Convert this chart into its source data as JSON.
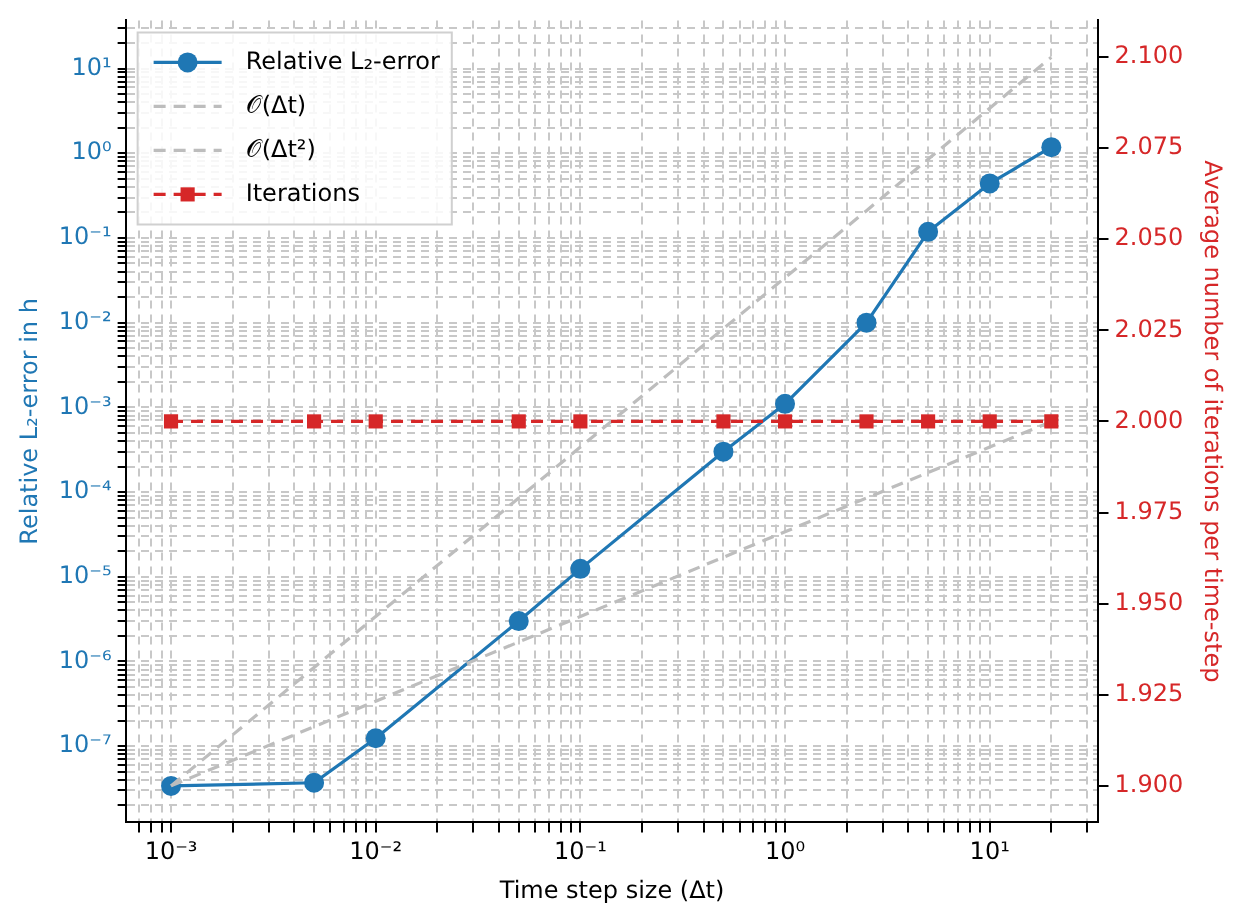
{
  "chart_data": {
    "type": "line",
    "xlabel": "Time step size (Δt)",
    "ylabel": "Relative L₂-error in h",
    "y2label": "Average number of iterations per time-step",
    "x": [
      0.001,
      0.005,
      0.01,
      0.05,
      0.1,
      0.5,
      1,
      2.5,
      5,
      10,
      20
    ],
    "series": [
      {
        "name": "Relative L₂-error",
        "color": "#1f77b4",
        "values": [
          3.4e-08,
          3.7e-08,
          1.24e-07,
          3e-06,
          1.24e-05,
          0.0003,
          0.0011,
          0.01,
          0.118,
          0.44,
          1.18
        ],
        "marker": "circle",
        "line_style": "solid"
      },
      {
        "name": "𝒪(Δt)",
        "color": "#bdbdbd",
        "values": [
          3.4e-08,
          1.7e-07,
          3.4e-07,
          1.7e-06,
          3.4e-06,
          1.7e-05,
          3.4e-05,
          8.5e-05,
          0.00017,
          0.00034,
          0.00068
        ],
        "marker": "none",
        "line_style": "dashed"
      },
      {
        "name": "𝒪(Δt²)",
        "color": "#bdbdbd",
        "values": [
          3.4e-08,
          8.5e-07,
          3.4e-06,
          8.5e-05,
          0.00034,
          0.0085,
          0.034,
          0.21,
          0.85,
          3.4,
          13.6
        ],
        "marker": "none",
        "line_style": "dashed"
      },
      {
        "name": "Iterations",
        "color": "#d62728",
        "axis": "y2",
        "values": [
          2,
          2,
          2,
          2,
          2,
          2,
          2,
          2,
          2,
          2,
          2
        ],
        "marker": "square",
        "line_style": "dashed"
      }
    ],
    "log": "xy",
    "grid": true,
    "legend": "top left",
    "xlim": [
      0.0006,
      34
    ],
    "xticks": [
      {
        "value": 0.0007,
        "label": null
      },
      {
        "value": 0.0008,
        "label": null
      },
      {
        "value": 0.0009,
        "label": null
      },
      {
        "value": 0.001,
        "label": "10⁻³"
      },
      {
        "value": 0.002,
        "label": null
      },
      {
        "value": 0.003,
        "label": null
      },
      {
        "value": 0.004,
        "label": null
      },
      {
        "value": 0.005,
        "label": null
      },
      {
        "value": 0.006,
        "label": null
      },
      {
        "value": 0.007,
        "label": null
      },
      {
        "value": 0.008,
        "label": null
      },
      {
        "value": 0.009,
        "label": null
      },
      {
        "value": 0.01,
        "label": "10⁻²"
      },
      {
        "value": 0.02,
        "label": null
      },
      {
        "value": 0.03,
        "label": null
      },
      {
        "value": 0.04,
        "label": null
      },
      {
        "value": 0.05,
        "label": null
      },
      {
        "value": 0.06,
        "label": null
      },
      {
        "value": 0.07,
        "label": null
      },
      {
        "value": 0.08,
        "label": null
      },
      {
        "value": 0.09,
        "label": null
      },
      {
        "value": 0.1,
        "label": "10⁻¹"
      },
      {
        "value": 0.2,
        "label": null
      },
      {
        "value": 0.3,
        "label": null
      },
      {
        "value": 0.4,
        "label": null
      },
      {
        "value": 0.5,
        "label": null
      },
      {
        "value": 0.6,
        "label": null
      },
      {
        "value": 0.7,
        "label": null
      },
      {
        "value": 0.8,
        "label": null
      },
      {
        "value": 0.9,
        "label": null
      },
      {
        "value": 1,
        "label": "10⁰"
      },
      {
        "value": 2,
        "label": null
      },
      {
        "value": 3,
        "label": null
      },
      {
        "value": 4,
        "label": null
      },
      {
        "value": 5,
        "label": null
      },
      {
        "value": 6,
        "label": null
      },
      {
        "value": 7,
        "label": null
      },
      {
        "value": 8,
        "label": null
      },
      {
        "value": 9,
        "label": null
      },
      {
        "value": 10,
        "label": "10¹"
      },
      {
        "value": 20,
        "label": null
      },
      {
        "value": 30,
        "label": null
      }
    ],
    "ylim": [
      1.26e-08,
      37
    ],
    "yticks": [
      {
        "value": 2e-08,
        "label": null
      },
      {
        "value": 3e-08,
        "label": null
      },
      {
        "value": 4e-08,
        "label": null
      },
      {
        "value": 5e-08,
        "label": null
      },
      {
        "value": 6e-08,
        "label": null
      },
      {
        "value": 7e-08,
        "label": null
      },
      {
        "value": 8e-08,
        "label": null
      },
      {
        "value": 9e-08,
        "label": null
      },
      {
        "value": 1e-07,
        "label": "10⁻⁷"
      },
      {
        "value": 2e-07,
        "label": null
      },
      {
        "value": 3e-07,
        "label": null
      },
      {
        "value": 4e-07,
        "label": null
      },
      {
        "value": 5e-07,
        "label": null
      },
      {
        "value": 6e-07,
        "label": null
      },
      {
        "value": 7e-07,
        "label": null
      },
      {
        "value": 8e-07,
        "label": null
      },
      {
        "value": 9e-07,
        "label": null
      },
      {
        "value": 1e-06,
        "label": "10⁻⁶"
      },
      {
        "value": 2e-06,
        "label": null
      },
      {
        "value": 3e-06,
        "label": null
      },
      {
        "value": 4e-06,
        "label": null
      },
      {
        "value": 5e-06,
        "label": null
      },
      {
        "value": 6e-06,
        "label": null
      },
      {
        "value": 7e-06,
        "label": null
      },
      {
        "value": 8e-06,
        "label": null
      },
      {
        "value": 9e-06,
        "label": null
      },
      {
        "value": 1e-05,
        "label": "10⁻⁵"
      },
      {
        "value": 2e-05,
        "label": null
      },
      {
        "value": 3e-05,
        "label": null
      },
      {
        "value": 4e-05,
        "label": null
      },
      {
        "value": 5e-05,
        "label": null
      },
      {
        "value": 6e-05,
        "label": null
      },
      {
        "value": 7e-05,
        "label": null
      },
      {
        "value": 8e-05,
        "label": null
      },
      {
        "value": 9e-05,
        "label": null
      },
      {
        "value": 0.0001,
        "label": "10⁻⁴"
      },
      {
        "value": 0.0002,
        "label": null
      },
      {
        "value": 0.0003,
        "label": null
      },
      {
        "value": 0.0004,
        "label": null
      },
      {
        "value": 0.0005,
        "label": null
      },
      {
        "value": 0.0006,
        "label": null
      },
      {
        "value": 0.0007,
        "label": null
      },
      {
        "value": 0.0008,
        "label": null
      },
      {
        "value": 0.0009,
        "label": null
      },
      {
        "value": 0.001,
        "label": "10⁻³"
      },
      {
        "value": 0.002,
        "label": null
      },
      {
        "value": 0.003,
        "label": null
      },
      {
        "value": 0.004,
        "label": null
      },
      {
        "value": 0.005,
        "label": null
      },
      {
        "value": 0.006,
        "label": null
      },
      {
        "value": 0.007,
        "label": null
      },
      {
        "value": 0.008,
        "label": null
      },
      {
        "value": 0.009,
        "label": null
      },
      {
        "value": 0.01,
        "label": "10⁻²"
      },
      {
        "value": 0.02,
        "label": null
      },
      {
        "value": 0.03,
        "label": null
      },
      {
        "value": 0.04,
        "label": null
      },
      {
        "value": 0.05,
        "label": null
      },
      {
        "value": 0.06,
        "label": null
      },
      {
        "value": 0.07,
        "label": null
      },
      {
        "value": 0.08,
        "label": null
      },
      {
        "value": 0.09,
        "label": null
      },
      {
        "value": 0.1,
        "label": "10⁻¹"
      },
      {
        "value": 0.2,
        "label": null
      },
      {
        "value": 0.3,
        "label": null
      },
      {
        "value": 0.4,
        "label": null
      },
      {
        "value": 0.5,
        "label": null
      },
      {
        "value": 0.6,
        "label": null
      },
      {
        "value": 0.7,
        "label": null
      },
      {
        "value": 0.8,
        "label": null
      },
      {
        "value": 0.9,
        "label": null
      },
      {
        "value": 1,
        "label": "10⁰"
      },
      {
        "value": 2,
        "label": null
      },
      {
        "value": 3,
        "label": null
      },
      {
        "value": 4,
        "label": null
      },
      {
        "value": 5,
        "label": null
      },
      {
        "value": 6,
        "label": null
      },
      {
        "value": 7,
        "label": null
      },
      {
        "value": 8,
        "label": null
      },
      {
        "value": 9,
        "label": null
      },
      {
        "value": 10,
        "label": "10¹"
      },
      {
        "value": 20,
        "label": null
      },
      {
        "value": 30,
        "label": null
      }
    ],
    "y2lim": [
      1.89,
      2.11
    ],
    "y2ticks": [
      {
        "value": 1.9,
        "label": "1.900"
      },
      {
        "value": 1.925,
        "label": "1.925"
      },
      {
        "value": 1.95,
        "label": "1.950"
      },
      {
        "value": 1.975,
        "label": "1.975"
      },
      {
        "value": 2,
        "label": "2.000"
      },
      {
        "value": 2.025,
        "label": "2.025"
      },
      {
        "value": 2.05,
        "label": "2.050"
      },
      {
        "value": 2.075,
        "label": "2.075"
      },
      {
        "value": 2.1,
        "label": "2.100"
      }
    ]
  }
}
